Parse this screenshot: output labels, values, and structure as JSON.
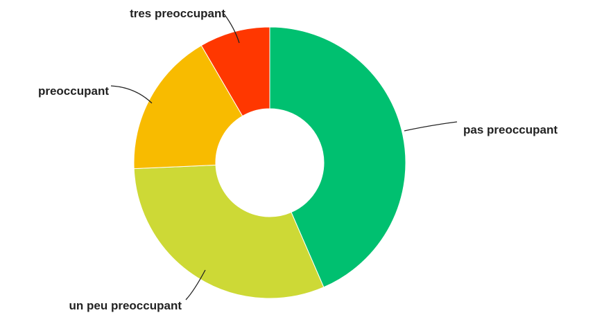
{
  "chart_data": {
    "type": "pie",
    "donut": true,
    "categories": [
      "pas preoccupant",
      "un peu preoccupant",
      "preoccupant",
      "tres preoccupant"
    ],
    "values": [
      43.5,
      30.8,
      17.3,
      8.4
    ],
    "colors": [
      "#00c070",
      "#cdd936",
      "#f8bb00",
      "#ff3700"
    ],
    "start": "12 o'clock",
    "direction": "clockwise",
    "legend": "none",
    "labels": "outside with connector lines"
  }
}
